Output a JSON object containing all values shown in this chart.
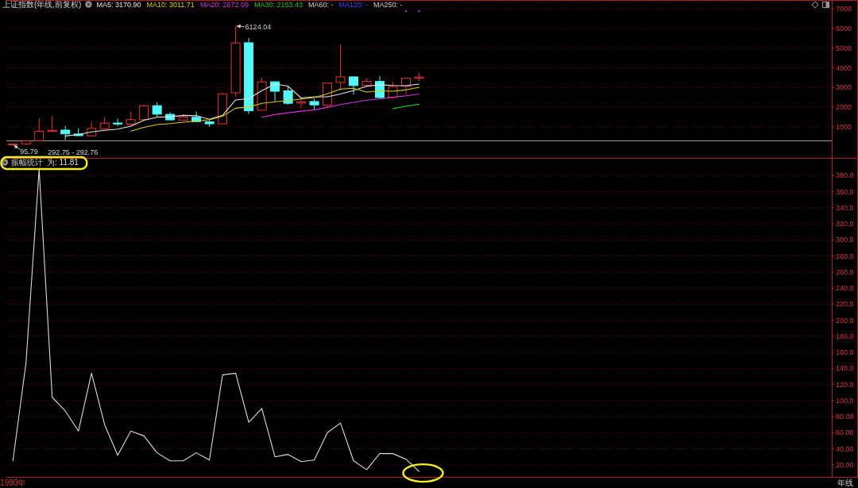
{
  "chart_data": [
    {
      "type": "candlestick",
      "title": "上证指数(年线,前复权)",
      "categories": [
        null,
        null,
        null,
        null,
        null,
        null,
        null,
        null,
        null,
        null,
        null,
        null,
        null,
        null,
        null,
        null,
        null,
        null,
        null,
        null,
        null,
        null,
        null,
        null,
        null,
        null,
        null,
        null,
        null,
        null,
        null,
        null,
        null,
        null,
        null,
        null,
        null,
        null,
        null,
        null,
        null,
        null,
        null,
        null,
        null,
        null,
        null,
        null,
        null,
        null,
        null,
        null,
        null,
        null,
        null,
        null,
        null,
        null,
        null,
        null,
        null,
        null,
        null
      ],
      "ohlc": [
        [
          100,
          130,
          95.79,
          130
        ],
        [
          130,
          292.75,
          100,
          292.75
        ],
        [
          294,
          1430,
          292.76,
          780
        ],
        [
          780,
          1560,
          750,
          830
        ],
        [
          840,
          1050,
          330,
          650
        ],
        [
          640,
          930,
          520,
          560
        ],
        [
          550,
          1260,
          510,
          920
        ],
        [
          910,
          1510,
          870,
          1190
        ],
        [
          1200,
          1420,
          1040,
          1150
        ],
        [
          1140,
          1760,
          1050,
          1370
        ],
        [
          1370,
          2130,
          1360,
          2070
        ],
        [
          2080,
          2250,
          1510,
          1650
        ],
        [
          1640,
          1750,
          1340,
          1360
        ],
        [
          1350,
          1650,
          1310,
          1500
        ],
        [
          1490,
          1780,
          1260,
          1270
        ],
        [
          1260,
          1330,
          1000,
          1160
        ],
        [
          1160,
          2700,
          1160,
          2680
        ],
        [
          2730,
          6124.04,
          2540,
          5260
        ],
        [
          5270,
          5520,
          1660,
          1820
        ],
        [
          1850,
          3480,
          1840,
          3280
        ],
        [
          3290,
          3310,
          2320,
          2810
        ],
        [
          2830,
          3070,
          2130,
          2200
        ],
        [
          2210,
          2480,
          1950,
          2270
        ],
        [
          2290,
          2440,
          1850,
          2120
        ],
        [
          2110,
          3240,
          1970,
          3230
        ],
        [
          3260,
          5180,
          2850,
          3540
        ],
        [
          3540,
          3540,
          2640,
          3100
        ],
        [
          3110,
          3450,
          3020,
          3310
        ],
        [
          3310,
          3590,
          2450,
          2490
        ],
        [
          2500,
          3290,
          2440,
          3050
        ],
        [
          3070,
          3470,
          2650,
          3470
        ],
        [
          3470,
          3730,
          3320,
          3530
        ],
        null,
        null,
        null,
        null,
        null,
        null,
        null,
        null,
        null,
        null,
        null,
        null,
        null,
        null,
        null,
        null,
        null,
        null,
        null,
        null,
        null,
        null,
        null,
        null,
        null,
        null,
        null,
        null,
        null,
        null,
        null
      ],
      "colors": [
        "#e83434",
        "#e83434",
        "#e83434",
        "#e83434",
        "#54f8f8",
        "#54f8f8",
        "#e83434",
        "#e83434",
        "#54f8f8",
        "#e83434",
        "#e83434",
        "#54f8f8",
        "#54f8f8",
        "#e83434",
        "#54f8f8",
        "#54f8f8",
        "#e83434",
        "#e83434",
        "#54f8f8",
        "#e83434",
        "#54f8f8",
        "#54f8f8",
        "#e83434",
        "#54f8f8",
        "#e83434",
        "#e83434",
        "#54f8f8",
        "#e83434",
        "#54f8f8",
        "#e83434",
        "#e83434",
        "#e83434",
        null,
        null,
        null,
        null,
        null,
        null,
        null,
        null,
        null,
        null,
        null,
        null,
        null,
        null,
        null,
        null,
        null,
        null,
        null,
        null,
        null,
        null,
        null,
        null,
        null,
        null,
        null,
        null,
        null,
        null,
        null
      ],
      "series": [
        {
          "name": "MA5: 3170.90",
          "type": "line",
          "color": "#e6e6e6",
          "values": [
            null,
            null,
            null,
            null,
            540,
            620,
            750,
            830,
            890,
            1040,
            1340,
            1490,
            1520,
            1590,
            1570,
            1390,
            1590,
            2370,
            2440,
            2840,
            3170,
            3070,
            2470,
            2530,
            2530,
            2670,
            2850,
            3060,
            3140,
            3100,
            3090,
            3170.9,
            null,
            null,
            null,
            null,
            null,
            null,
            null,
            null,
            null,
            null,
            null,
            null,
            null,
            null,
            null,
            null,
            null,
            null,
            null,
            null,
            null,
            null,
            null,
            null,
            null,
            null,
            null,
            null,
            null,
            null,
            null
          ]
        },
        {
          "name": "MA10: 3011.71",
          "type": "line",
          "color": "#d8cc10",
          "values": [
            null,
            null,
            null,
            null,
            null,
            null,
            null,
            null,
            null,
            790,
            980,
            1120,
            1170,
            1240,
            1300,
            1360,
            1540,
            1950,
            2010,
            2200,
            2280,
            2330,
            2420,
            2490,
            2680,
            2920,
            2960,
            2770,
            2830,
            2810,
            2880,
            3011.71,
            null,
            null,
            null,
            null,
            null,
            null,
            null,
            null,
            null,
            null,
            null,
            null,
            null,
            null,
            null,
            null,
            null,
            null,
            null,
            null,
            null,
            null,
            null,
            null,
            null,
            null,
            null,
            null,
            null,
            null,
            null
          ]
        },
        {
          "name": "MA20: 2672.09",
          "type": "line",
          "color": "#dc30dc",
          "values": [
            null,
            null,
            null,
            null,
            null,
            null,
            null,
            null,
            null,
            null,
            null,
            null,
            null,
            null,
            null,
            null,
            null,
            null,
            null,
            1490,
            1630,
            1720,
            1800,
            1860,
            1990,
            2140,
            2250,
            2360,
            2420,
            2510,
            2580,
            2672.09,
            null,
            null,
            null,
            null,
            null,
            null,
            null,
            null,
            null,
            null,
            null,
            null,
            null,
            null,
            null,
            null,
            null,
            null,
            null,
            null,
            null,
            null,
            null,
            null,
            null,
            null,
            null,
            null,
            null,
            null,
            null
          ]
        },
        {
          "name": "MA30: 2153.43",
          "type": "line",
          "color": "#20c020",
          "values": [
            null,
            null,
            null,
            null,
            null,
            null,
            null,
            null,
            null,
            null,
            null,
            null,
            null,
            null,
            null,
            null,
            null,
            null,
            null,
            null,
            null,
            null,
            null,
            null,
            null,
            null,
            null,
            null,
            null,
            1930,
            2050,
            2153.43,
            null,
            null,
            null,
            null,
            null,
            null,
            null,
            null,
            null,
            null,
            null,
            null,
            null,
            null,
            null,
            null,
            null,
            null,
            null,
            null,
            null,
            null,
            null,
            null,
            null,
            null,
            null,
            null,
            null,
            null,
            null
          ]
        },
        {
          "name": "MA60: -",
          "type": "line",
          "color": "#d0d0d0",
          "values": [
            null,
            null,
            null,
            null,
            null,
            null,
            null,
            null,
            null,
            null,
            null,
            null,
            null,
            null,
            null,
            null,
            null,
            null,
            null,
            null,
            null,
            null,
            null,
            null,
            null,
            null,
            null,
            null,
            null,
            null,
            null,
            null,
            null,
            null,
            null,
            null,
            null,
            null,
            null,
            null,
            null,
            null,
            null,
            null,
            null,
            null,
            null,
            null,
            null,
            null,
            null,
            null,
            null,
            null,
            null,
            null,
            null,
            null,
            null,
            null,
            null,
            null,
            null
          ]
        },
        {
          "name": "MA120: -",
          "type": "line",
          "color": "#3a46ff",
          "values": [
            null,
            null,
            null,
            null,
            null,
            null,
            null,
            null,
            null,
            null,
            null,
            null,
            null,
            null,
            null,
            null,
            null,
            null,
            null,
            null,
            null,
            null,
            null,
            null,
            null,
            null,
            null,
            null,
            null,
            null,
            null,
            null,
            null,
            null,
            null,
            null,
            null,
            null,
            null,
            null,
            null,
            null,
            null,
            null,
            null,
            null,
            null,
            null,
            null,
            null,
            null,
            null,
            null,
            null,
            null,
            null,
            null,
            null,
            null,
            null,
            null,
            null,
            null
          ]
        },
        {
          "name": "MA250: -",
          "type": "line",
          "color": "#d0d0d0",
          "values": [
            null,
            null,
            null,
            null,
            null,
            null,
            null,
            null,
            null,
            null,
            null,
            null,
            null,
            null,
            null,
            null,
            null,
            null,
            null,
            null,
            null,
            null,
            null,
            null,
            null,
            null,
            null,
            null,
            null,
            null,
            null,
            null,
            null,
            null,
            null,
            null,
            null,
            null,
            null,
            null,
            null,
            null,
            null,
            null,
            null,
            null,
            null,
            null,
            null,
            null,
            null,
            null,
            null,
            null,
            null,
            null,
            null,
            null,
            null,
            null,
            null,
            null,
            null
          ]
        }
      ],
      "ylim": [
        -570,
        7440
      ],
      "yticks": [
        1000,
        2000,
        3000,
        4000,
        5000,
        6000,
        7000
      ],
      "grid": "y",
      "legend": "top left",
      "tick_labels": "y",
      "annotations": [
        "95.79",
        "6124.04"
      ],
      "ref_lines": [
        {
          "axis": "y",
          "value": 292.75,
          "label": "292.75 - 292.76",
          "color": "#a0a0a0"
        }
      ]
    },
    {
      "type": "line",
      "title": "振幅统计",
      "categories": [
        "1990年",
        null,
        null,
        null,
        null,
        null,
        null,
        null,
        null,
        null,
        null,
        null,
        null,
        null,
        null,
        null,
        null,
        null,
        null,
        null,
        null,
        null,
        null,
        null,
        null,
        null,
        null,
        null,
        null,
        null,
        null,
        null,
        null,
        null,
        null,
        null,
        null,
        null,
        null,
        null,
        null,
        null,
        null,
        null,
        null,
        null,
        null,
        null,
        null,
        null,
        null,
        null,
        null,
        null,
        null,
        null,
        null,
        null,
        null,
        null,
        null,
        null,
        null
      ],
      "series": [
        {
          "name": "为: 11.81",
          "color": "#dcdcdc",
          "values": [
            25,
            147,
            388,
            104,
            87,
            62,
            134,
            70,
            32,
            62,
            56,
            35,
            25,
            25,
            35,
            26,
            132,
            134,
            73,
            90,
            30,
            33,
            24,
            26,
            60,
            72,
            25,
            14,
            34,
            34,
            27,
            11.81,
            null,
            null,
            null,
            null,
            null,
            null,
            null,
            null,
            null,
            null,
            null,
            null,
            null,
            null,
            null,
            null,
            null,
            null,
            null,
            null,
            null,
            null,
            null,
            null,
            null,
            null,
            null,
            null,
            null,
            null,
            null
          ]
        }
      ],
      "ylim": [
        5,
        402
      ],
      "yticks": [
        {
          "value": 20,
          "label": "20.00"
        },
        {
          "value": 40,
          "label": "40.00"
        },
        {
          "value": 60,
          "label": "60.00"
        },
        {
          "value": 80,
          "label": "80.00"
        },
        {
          "value": 100,
          "label": "100.0"
        },
        {
          "value": 120,
          "label": "120.0"
        },
        {
          "value": 140,
          "label": "140.0"
        },
        {
          "value": 160,
          "label": "160.0"
        },
        {
          "value": 180,
          "label": "180.0"
        },
        {
          "value": 200,
          "label": "200.0"
        },
        {
          "value": 220,
          "label": "220.0"
        },
        {
          "value": 240,
          "label": "240.0"
        },
        {
          "value": 260,
          "label": "260.0"
        },
        {
          "value": 280,
          "label": "280.0"
        },
        {
          "value": 300,
          "label": "300.0"
        },
        {
          "value": 320,
          "label": "320.0"
        },
        {
          "value": 340,
          "label": "340.0"
        },
        {
          "value": 360,
          "label": "360.0"
        },
        {
          "value": 380,
          "label": "380.0"
        }
      ],
      "grid": "y",
      "legend": "top left",
      "xlabel": "年线"
    }
  ]
}
